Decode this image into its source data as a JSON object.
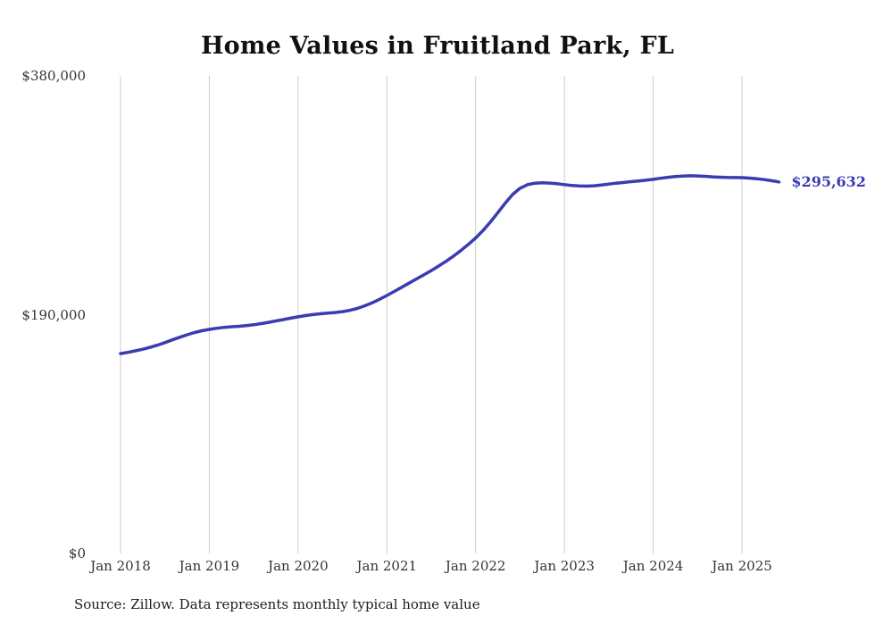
{
  "title": "Home Values in Fruitland Park, FL",
  "source_note": "Source: Zillow. Data represents monthly typical home value",
  "end_label": "$295,632",
  "colors": {
    "line": "#3b3bb2",
    "grid": "#cccccc",
    "text": "#333333",
    "title": "#111111"
  },
  "chart_data": {
    "type": "line",
    "title": "Home Values in Fruitland Park, FL",
    "x_tick_labels": [
      "Jan 2018",
      "Jan 2019",
      "Jan 2020",
      "Jan 2021",
      "Jan 2022",
      "Jan 2023",
      "Jan 2024",
      "Jan 2025"
    ],
    "y_tick_labels": [
      "$0",
      "$190,000",
      "$380,000"
    ],
    "ylim": [
      0,
      380000
    ],
    "x_start": "Jan 2018",
    "x_interval": "monthly",
    "grid": "vertical-only",
    "legend": "none",
    "end_value": 295632,
    "values": [
      159000,
      160000,
      161200,
      162500,
      164000,
      165800,
      167800,
      170000,
      172000,
      174000,
      175800,
      177200,
      178300,
      179200,
      179900,
      180400,
      180800,
      181300,
      182000,
      182900,
      183900,
      185000,
      186100,
      187200,
      188300,
      189300,
      190100,
      190700,
      191200,
      191700,
      192400,
      193500,
      195000,
      197000,
      199400,
      202200,
      205300,
      208500,
      211800,
      215100,
      218400,
      221700,
      225100,
      228700,
      232500,
      236600,
      241000,
      245800,
      251000,
      257000,
      263800,
      271200,
      278800,
      285600,
      290600,
      293400,
      294600,
      294900,
      294700,
      294200,
      293500,
      292800,
      292400,
      292300,
      292600,
      293200,
      293900,
      294600,
      295200,
      295800,
      296400,
      297000,
      297700,
      298500,
      299300,
      299900,
      300300,
      300500,
      300400,
      300100,
      299700,
      299400,
      299200,
      299100,
      299000,
      298700,
      298200,
      297500,
      296600,
      295632
    ]
  }
}
